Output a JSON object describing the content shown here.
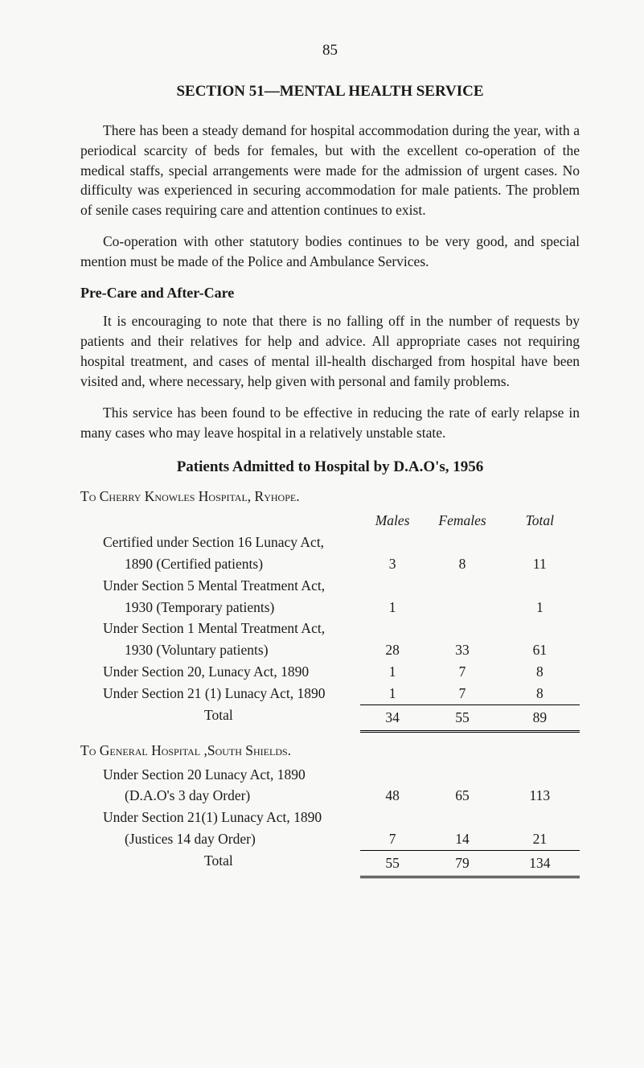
{
  "page_number": "85",
  "section_title": "SECTION 51—MENTAL HEALTH SERVICE",
  "paragraphs": {
    "p1": "There has been a steady demand for hospital accommodation during the year, with a periodical scarcity of beds for females, but with the excellent co-operation of the medical staffs, special arrangements were made for the admission of urgent cases. No difficulty was experienced in securing accommodation for male patients. The problem of senile cases requiring care and attention continues to exist.",
    "p2": "Co-operation with other statutory bodies continues to be very good, and special mention must be made of the Police and Ambulance Services.",
    "p3": "It is encouraging to note that there is no falling off in the number of requests by patients and their relatives for help and advice. All appropriate cases not requiring hospital treatment, and cases of mental ill-health discharged from hospital have been visited and, where necessary, help given with personal and family problems.",
    "p4": "This service has been found to be effective in reducing the rate of early relapse in many cases who may leave hospital in a relatively unstable state."
  },
  "subheadings": {
    "precare": "Pre-Care and After-Care"
  },
  "table": {
    "title": "Patients Admitted to Hospital by D.A.O's, 1956",
    "hospital1_prefix": "To ",
    "hospital1_name": "Cherry Knowles Hospital, Ryhope.",
    "hospital2_prefix": "To ",
    "hospital2_name": "General Hospital ,South Shields.",
    "headers": {
      "males": "Males",
      "females": "Females",
      "total": "Total"
    },
    "rows1": [
      {
        "label": "Certified under Section 16 Lunacy Act,",
        "indent": false,
        "m": "",
        "f": "",
        "t": ""
      },
      {
        "label": "1890 (Certified patients)",
        "indent": true,
        "m": "3",
        "f": "8",
        "t": "11"
      },
      {
        "label": "Under Section 5 Mental Treatment Act,",
        "indent": false,
        "m": "",
        "f": "",
        "t": ""
      },
      {
        "label": "1930 (Temporary patients)",
        "indent": true,
        "m": "1",
        "f": "",
        "t": "1"
      },
      {
        "label": "Under Section 1 Mental Treatment Act,",
        "indent": false,
        "m": "",
        "f": "",
        "t": ""
      },
      {
        "label": "1930 (Voluntary patients)",
        "indent": true,
        "m": "28",
        "f": "33",
        "t": "61"
      },
      {
        "label": "Under Section 20, Lunacy Act, 1890",
        "indent": false,
        "m": "1",
        "f": "7",
        "t": "8"
      },
      {
        "label": "Under Section 21 (1) Lunacy Act, 1890",
        "indent": false,
        "m": "1",
        "f": "7",
        "t": "8"
      }
    ],
    "total1": {
      "label": "Total",
      "m": "34",
      "f": "55",
      "t": "89"
    },
    "rows2": [
      {
        "label": "Under Section 20 Lunacy Act, 1890",
        "indent": false,
        "m": "",
        "f": "",
        "t": ""
      },
      {
        "label": "(D.A.O's 3 day Order)",
        "indent": true,
        "m": "48",
        "f": "65",
        "t": "113"
      },
      {
        "label": "Under Section 21(1) Lunacy Act, 1890",
        "indent": false,
        "m": "",
        "f": "",
        "t": ""
      },
      {
        "label": "(Justices 14 day Order)",
        "indent": true,
        "m": "7",
        "f": "14",
        "t": "21"
      }
    ],
    "total2": {
      "label": "Total",
      "m": "55",
      "f": "79",
      "t": "134"
    }
  }
}
